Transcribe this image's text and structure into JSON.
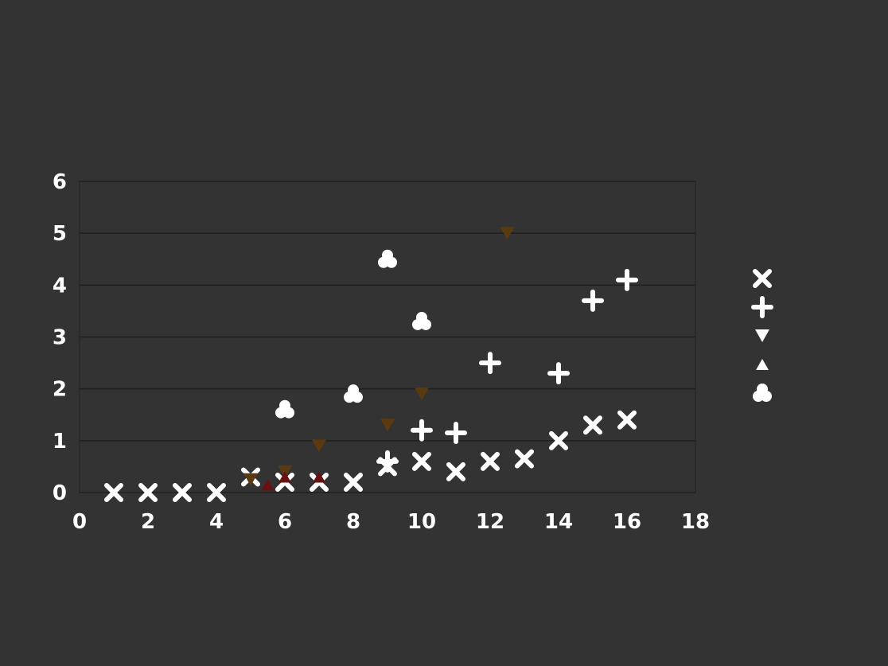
{
  "chart_data": {
    "type": "scatter",
    "title": "",
    "xlabel": "",
    "ylabel": "",
    "x_ticks": [
      "0",
      "2",
      "4",
      "6",
      "8",
      "10",
      "12",
      "14",
      "16",
      "18"
    ],
    "y_ticks": [
      "0",
      "1",
      "2",
      "3",
      "4",
      "5",
      "6"
    ],
    "xlim": [
      0,
      18
    ],
    "ylim": [
      0,
      6
    ],
    "grid": true,
    "legend_position": "right",
    "series": [
      {
        "name": "",
        "marker": "x",
        "color": "#ffffff",
        "points": [
          [
            1.0,
            0.0
          ],
          [
            2.0,
            0.0
          ],
          [
            3.0,
            0.0
          ],
          [
            4.0,
            0.0
          ],
          [
            5.0,
            0.3
          ],
          [
            6.0,
            0.2
          ],
          [
            7.0,
            0.2
          ],
          [
            8.0,
            0.2
          ],
          [
            9.0,
            0.5
          ],
          [
            10.0,
            0.6
          ],
          [
            11.0,
            0.4
          ],
          [
            12.0,
            0.6
          ],
          [
            13.0,
            0.65
          ],
          [
            14.0,
            1.0
          ],
          [
            15.0,
            1.3
          ],
          [
            16.0,
            1.4
          ]
        ]
      },
      {
        "name": "",
        "marker": "plus",
        "color": "#ffffff",
        "points": [
          [
            9.0,
            0.6
          ],
          [
            10.0,
            1.2
          ],
          [
            11.0,
            1.15
          ],
          [
            12.0,
            2.5
          ],
          [
            14.0,
            2.3
          ],
          [
            15.0,
            3.7
          ],
          [
            16.0,
            4.1
          ]
        ]
      },
      {
        "name": "",
        "marker": "triangle-down",
        "color": "#5c3a10",
        "points": [
          [
            5.0,
            0.25
          ],
          [
            6.0,
            0.4
          ],
          [
            7.0,
            0.9
          ],
          [
            9.0,
            1.3
          ],
          [
            10.0,
            1.9
          ],
          [
            12.5,
            5.0
          ]
        ]
      },
      {
        "name": "",
        "marker": "triangle-up",
        "color": "#6b1010",
        "points": [
          [
            5.5,
            0.15
          ],
          [
            6.0,
            0.3
          ],
          [
            7.0,
            0.3
          ]
        ]
      },
      {
        "name": "",
        "marker": "blob",
        "color": "#ffffff",
        "points": [
          [
            6.0,
            1.6
          ],
          [
            8.0,
            1.9
          ],
          [
            9.0,
            4.5
          ],
          [
            10.0,
            3.3
          ]
        ]
      }
    ]
  }
}
